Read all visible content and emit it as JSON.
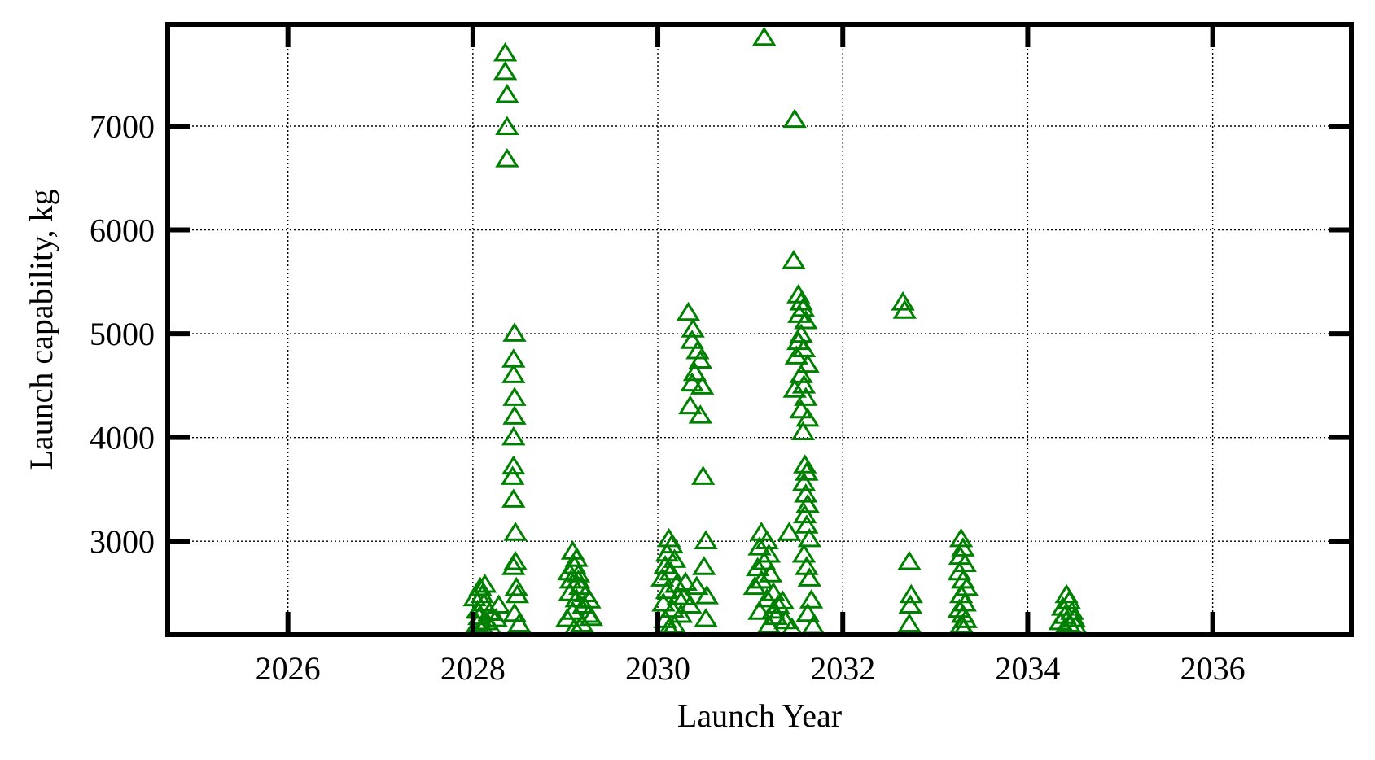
{
  "chart_data": {
    "type": "scatter",
    "xlabel": "Launch Year",
    "ylabel": "Launch capability, kg",
    "xlim": [
      2024.7,
      2037.5
    ],
    "ylim": [
      2100,
      7980
    ],
    "xticks": [
      2026,
      2028,
      2030,
      2032,
      2034,
      2036
    ],
    "yticks": [
      3000,
      4000,
      5000,
      6000,
      7000
    ],
    "grid": true,
    "legend": "none",
    "marker": "open-triangle",
    "marker_color": "#008000",
    "series": [
      {
        "points": [
          [
            2028.35,
            7700
          ],
          [
            2028.35,
            7520
          ],
          [
            2028.37,
            7300
          ],
          [
            2028.37,
            6990
          ],
          [
            2028.37,
            6680
          ],
          [
            2028.45,
            5000
          ],
          [
            2028.44,
            4750
          ],
          [
            2028.44,
            4600
          ],
          [
            2028.45,
            4380
          ],
          [
            2028.45,
            4200
          ],
          [
            2028.44,
            4000
          ],
          [
            2028.44,
            3720
          ],
          [
            2028.43,
            3620
          ],
          [
            2028.44,
            3400
          ],
          [
            2028.46,
            3080
          ],
          [
            2028.46,
            2800
          ],
          [
            2028.44,
            2750
          ],
          [
            2028.47,
            2550
          ],
          [
            2028.48,
            2480
          ],
          [
            2028.45,
            2300
          ],
          [
            2028.5,
            2200
          ],
          [
            2028.08,
            2550
          ],
          [
            2028.1,
            2480
          ],
          [
            2028.12,
            2400
          ],
          [
            2028.05,
            2330
          ],
          [
            2028.07,
            2270
          ],
          [
            2028.15,
            2220
          ],
          [
            2028.05,
            2200
          ],
          [
            2028.2,
            2160
          ],
          [
            2028.28,
            2380
          ],
          [
            2028.25,
            2250
          ],
          [
            2028.1,
            2180
          ],
          [
            2028.13,
            2580
          ],
          [
            2028.02,
            2450
          ],
          [
            2028.18,
            2310
          ],
          [
            2029.08,
            2900
          ],
          [
            2029.12,
            2830
          ],
          [
            2029.1,
            2760
          ],
          [
            2029.14,
            2680
          ],
          [
            2029.06,
            2620
          ],
          [
            2029.16,
            2560
          ],
          [
            2029.05,
            2500
          ],
          [
            2029.12,
            2440
          ],
          [
            2029.2,
            2380
          ],
          [
            2029.08,
            2320
          ],
          [
            2029.25,
            2290
          ],
          [
            2029.02,
            2250
          ],
          [
            2029.18,
            2200
          ],
          [
            2029.1,
            2160
          ],
          [
            2029.22,
            2490
          ],
          [
            2029.26,
            2430
          ],
          [
            2029.14,
            2620
          ],
          [
            2029.04,
            2700
          ],
          [
            2029.28,
            2260
          ],
          [
            2030.12,
            3020
          ],
          [
            2030.15,
            2960
          ],
          [
            2030.1,
            2880
          ],
          [
            2030.18,
            2820
          ],
          [
            2030.08,
            2760
          ],
          [
            2030.14,
            2700
          ],
          [
            2030.05,
            2640
          ],
          [
            2030.2,
            2580
          ],
          [
            2030.1,
            2520
          ],
          [
            2030.22,
            2460
          ],
          [
            2030.06,
            2400
          ],
          [
            2030.16,
            2340
          ],
          [
            2030.25,
            2290
          ],
          [
            2030.08,
            2240
          ],
          [
            2030.18,
            2190
          ],
          [
            2030.12,
            2160
          ],
          [
            2030.3,
            2600
          ],
          [
            2030.35,
            2380
          ],
          [
            2030.28,
            2460
          ],
          [
            2030.33,
            5200
          ],
          [
            2030.38,
            5040
          ],
          [
            2030.37,
            4930
          ],
          [
            2030.43,
            4830
          ],
          [
            2030.46,
            4740
          ],
          [
            2030.4,
            4620
          ],
          [
            2030.37,
            4520
          ],
          [
            2030.48,
            4490
          ],
          [
            2030.35,
            4300
          ],
          [
            2030.46,
            4210
          ],
          [
            2030.49,
            3620
          ],
          [
            2030.52,
            3000
          ],
          [
            2030.5,
            2750
          ],
          [
            2030.53,
            2470
          ],
          [
            2030.52,
            2250
          ],
          [
            2030.42,
            2560
          ],
          [
            2031.15,
            7850
          ],
          [
            2031.12,
            3080
          ],
          [
            2031.18,
            3000
          ],
          [
            2031.1,
            2940
          ],
          [
            2031.2,
            2870
          ],
          [
            2031.15,
            2800
          ],
          [
            2031.08,
            2740
          ],
          [
            2031.22,
            2680
          ],
          [
            2031.12,
            2620
          ],
          [
            2031.05,
            2560
          ],
          [
            2031.25,
            2500
          ],
          [
            2031.18,
            2440
          ],
          [
            2031.3,
            2380
          ],
          [
            2031.1,
            2320
          ],
          [
            2031.28,
            2270
          ],
          [
            2031.38,
            2230
          ],
          [
            2031.2,
            2190
          ],
          [
            2031.45,
            2160
          ],
          [
            2031.35,
            2420
          ],
          [
            2031.25,
            2330
          ],
          [
            2031.42,
            3080
          ],
          [
            2031.48,
            7060
          ],
          [
            2031.47,
            5700
          ],
          [
            2031.52,
            5370
          ],
          [
            2031.55,
            5300
          ],
          [
            2031.57,
            5240
          ],
          [
            2031.53,
            5180
          ],
          [
            2031.6,
            5120
          ],
          [
            2031.55,
            4990
          ],
          [
            2031.52,
            4920
          ],
          [
            2031.58,
            4850
          ],
          [
            2031.5,
            4780
          ],
          [
            2031.62,
            4700
          ],
          [
            2031.55,
            4600
          ],
          [
            2031.58,
            4500
          ],
          [
            2031.48,
            4460
          ],
          [
            2031.6,
            4380
          ],
          [
            2031.55,
            4260
          ],
          [
            2031.62,
            4180
          ],
          [
            2031.57,
            4050
          ],
          [
            2031.59,
            3730
          ],
          [
            2031.61,
            3660
          ],
          [
            2031.58,
            3560
          ],
          [
            2031.6,
            3450
          ],
          [
            2031.62,
            3350
          ],
          [
            2031.59,
            3250
          ],
          [
            2031.61,
            3150
          ],
          [
            2031.64,
            3020
          ],
          [
            2031.58,
            2870
          ],
          [
            2031.61,
            2750
          ],
          [
            2031.64,
            2640
          ],
          [
            2031.66,
            2430
          ],
          [
            2031.62,
            2300
          ],
          [
            2031.68,
            2180
          ],
          [
            2032.65,
            5300
          ],
          [
            2032.67,
            5220
          ],
          [
            2032.72,
            2800
          ],
          [
            2032.74,
            2480
          ],
          [
            2032.73,
            2380
          ],
          [
            2032.72,
            2200
          ],
          [
            2033.28,
            3020
          ],
          [
            2033.3,
            2930
          ],
          [
            2033.27,
            2850
          ],
          [
            2033.32,
            2780
          ],
          [
            2033.26,
            2700
          ],
          [
            2033.3,
            2620
          ],
          [
            2033.34,
            2550
          ],
          [
            2033.28,
            2480
          ],
          [
            2033.32,
            2400
          ],
          [
            2033.26,
            2340
          ],
          [
            2033.3,
            2290
          ],
          [
            2033.33,
            2240
          ],
          [
            2033.28,
            2190
          ],
          [
            2033.31,
            2160
          ],
          [
            2034.42,
            2480
          ],
          [
            2034.45,
            2420
          ],
          [
            2034.38,
            2360
          ],
          [
            2034.48,
            2320
          ],
          [
            2034.4,
            2280
          ],
          [
            2034.5,
            2250
          ],
          [
            2034.35,
            2220
          ],
          [
            2034.45,
            2200
          ],
          [
            2034.52,
            2180
          ],
          [
            2034.4,
            2160
          ]
        ]
      }
    ]
  }
}
